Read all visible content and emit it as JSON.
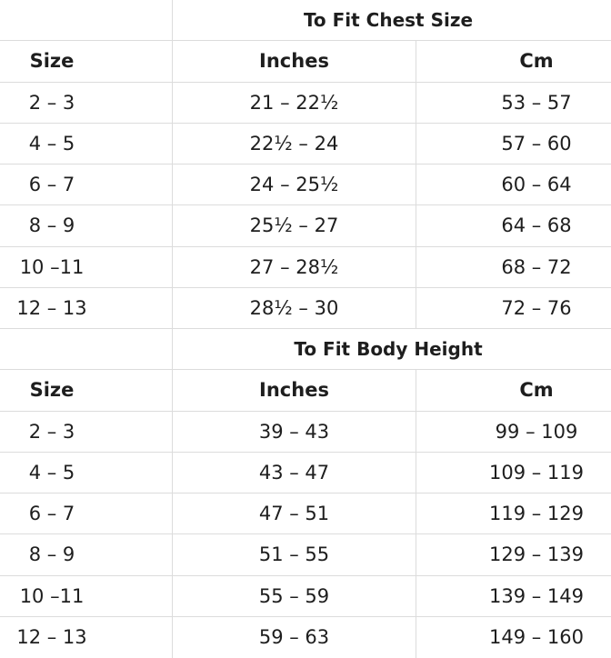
{
  "sections": [
    {
      "title": "To Fit Chest Size",
      "header": [
        "Size",
        "Inches",
        "Cm"
      ],
      "rows": [
        [
          "2 – 3",
          "21 – 22½",
          "53 – 57"
        ],
        [
          "4 – 5",
          "22½ – 24",
          "57 – 60"
        ],
        [
          "6 – 7",
          "24 – 25½",
          "60 – 64"
        ],
        [
          "8 – 9",
          "25½ – 27",
          "64 – 68"
        ],
        [
          "10 –11",
          "27 – 28½",
          "68 – 72"
        ],
        [
          "12 – 13",
          "28½ – 30",
          "72 – 76"
        ]
      ]
    },
    {
      "title": "To Fit Body Height",
      "header": [
        "Size",
        "Inches",
        "Cm"
      ],
      "rows": [
        [
          "2 – 3",
          "39 – 43",
          "99 – 109"
        ],
        [
          "4 – 5",
          "43 – 47",
          "109 – 119"
        ],
        [
          "6 – 7",
          "47 – 51",
          "119 – 129"
        ],
        [
          "8 – 9",
          "51 – 55",
          "129 – 139"
        ],
        [
          "10 –11",
          "55 – 59",
          "139 – 149"
        ],
        [
          "12 – 13",
          "59 – 63",
          "149 – 160"
        ]
      ]
    }
  ]
}
